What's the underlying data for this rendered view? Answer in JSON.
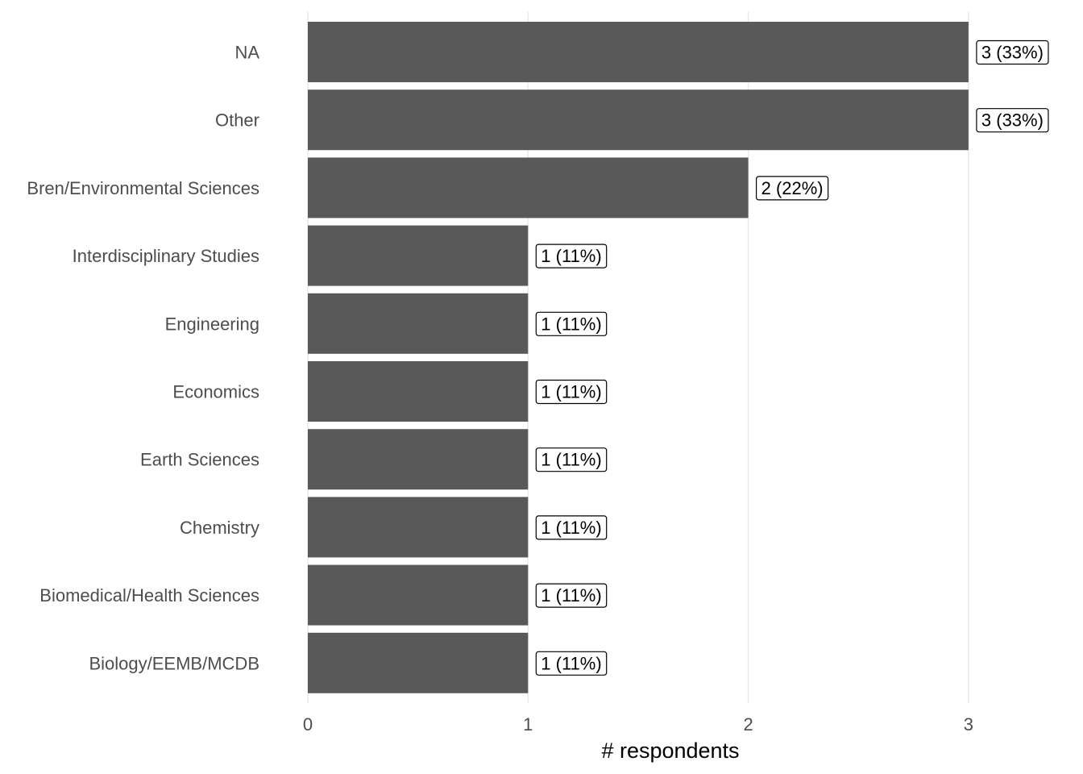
{
  "chart_data": {
    "type": "bar",
    "orientation": "horizontal",
    "categories": [
      "NA",
      "Other",
      "Bren/Environmental Sciences",
      "Interdisciplinary Studies",
      "Engineering",
      "Economics",
      "Earth Sciences",
      "Chemistry",
      "Biomedical/Health Sciences",
      "Biology/EEMB/MCDB"
    ],
    "values": [
      3,
      3,
      2,
      1,
      1,
      1,
      1,
      1,
      1,
      1
    ],
    "data_labels": [
      "3 (33%)",
      "3 (33%)",
      "2 (22%)",
      "1 (11%)",
      "1 (11%)",
      "1 (11%)",
      "1 (11%)",
      "1 (11%)",
      "1 (11%)",
      "1 (11%)"
    ],
    "xlabel": "# respondents",
    "ylabel": "",
    "title": "",
    "xlim": [
      0,
      3
    ],
    "xticks": [
      0,
      1,
      2,
      3
    ],
    "xtick_labels": [
      "0",
      "1",
      "2",
      "3"
    ],
    "grid": "vertical-major",
    "legend": "none",
    "bar_color": "#595959",
    "gridline_color": "#ebebeb"
  }
}
